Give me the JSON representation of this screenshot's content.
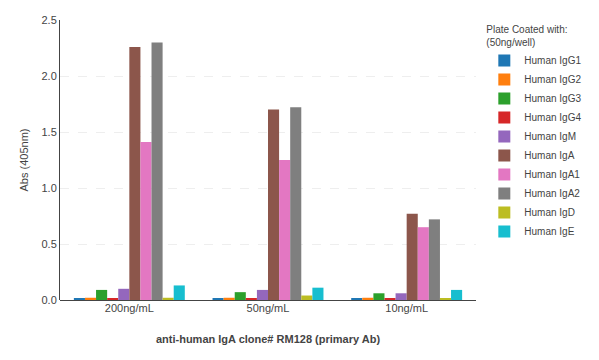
{
  "chart_data": {
    "type": "bar",
    "categories": [
      "200ng/mL",
      "50ng/mL",
      "10ng/mL"
    ],
    "series": [
      {
        "name": "Human IgG1",
        "values": [
          0.01,
          0.01,
          0.01
        ]
      },
      {
        "name": "Human IgG2",
        "values": [
          0.02,
          0.02,
          0.02
        ]
      },
      {
        "name": "Human IgG3",
        "values": [
          0.09,
          0.07,
          0.06
        ]
      },
      {
        "name": "Human IgG4",
        "values": [
          0.01,
          0.01,
          0.01
        ]
      },
      {
        "name": "Human IgM",
        "values": [
          0.1,
          0.09,
          0.06
        ]
      },
      {
        "name": "Human IgA",
        "values": [
          2.26,
          1.7,
          0.77
        ]
      },
      {
        "name": "Human IgA1",
        "values": [
          1.41,
          1.25,
          0.65
        ]
      },
      {
        "name": "Human IgA2",
        "values": [
          2.3,
          1.72,
          0.72
        ]
      },
      {
        "name": "Human IgD",
        "values": [
          0.02,
          0.04,
          0.01
        ]
      },
      {
        "name": "Human IgE",
        "values": [
          0.13,
          0.11,
          0.09
        ]
      }
    ],
    "ylabel": "Abs (405nm)",
    "xlabel": "anti-human IgA clone# RM128 (primary Ab)",
    "legend_title": "Plate Coated with:\n(50ng/well)",
    "legend": "right",
    "ylim": [
      0,
      2.5
    ],
    "yticks": [
      {
        "value": 0,
        "label": "0.0"
      },
      0.5,
      {
        "value": 1.0,
        "label": "1.0"
      },
      {
        "value": 1.5,
        "label": "1.5"
      },
      {
        "value": 2.0,
        "label": "2.0"
      },
      2.5
    ],
    "grid": true
  }
}
